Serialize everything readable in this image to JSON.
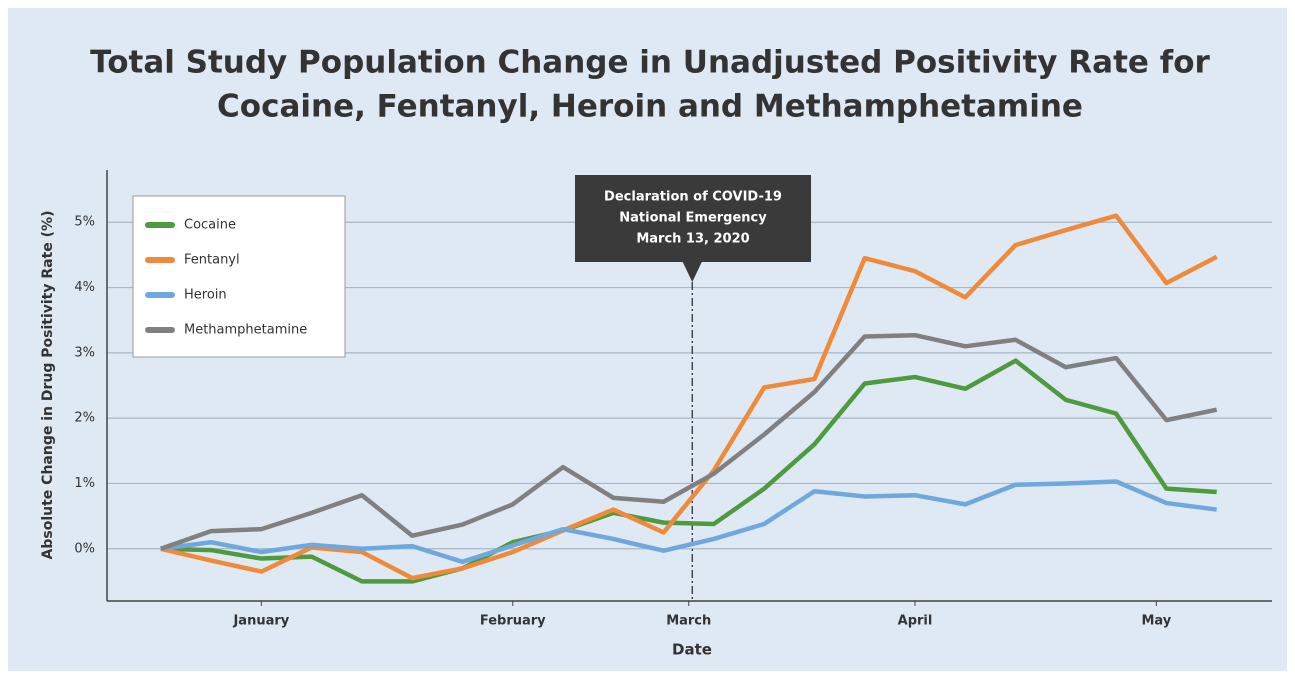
{
  "chart_data": {
    "type": "line",
    "title": [
      "Total Study Population Change in Unadjusted Positivity Rate for",
      "Cocaine, Fentanyl, Heroin and Methamphetamine"
    ],
    "x_label": "Date",
    "y_label": "Absolute Change in Drug Positivity Rate (%)",
    "x": [
      0,
      1,
      2,
      3,
      4,
      5,
      6,
      7,
      8,
      9,
      10,
      11,
      12,
      13,
      14,
      15,
      16,
      17,
      18,
      19,
      20,
      21
    ],
    "xlim": [
      -1.07,
      22.1
    ],
    "xticks": [
      {
        "value": 2,
        "label": "January"
      },
      {
        "value": 7,
        "label": "February"
      },
      {
        "value": 10.5,
        "label": "March"
      },
      {
        "value": 15,
        "label": "April"
      },
      {
        "value": 19.8,
        "label": "May"
      }
    ],
    "ylim": [
      -0.8,
      5.8
    ],
    "yticks": [
      {
        "value": 0,
        "label": "0%"
      },
      {
        "value": 1,
        "label": "1%"
      },
      {
        "value": 2,
        "label": "2%"
      },
      {
        "value": 3,
        "label": "3%"
      },
      {
        "value": 4,
        "label": "4%"
      },
      {
        "value": 5,
        "label": "5%"
      }
    ],
    "grid": true,
    "legend": "upper left",
    "series": [
      {
        "name": "Cocaine",
        "color": "#4e9a3f",
        "values": [
          0,
          -0.02,
          -0.15,
          -0.12,
          -0.5,
          -0.5,
          -0.3,
          0.1,
          0.28,
          0.55,
          0.4,
          0.38,
          0.92,
          1.6,
          2.53,
          2.63,
          2.45,
          2.88,
          2.28,
          2.07,
          0.92,
          0.87
        ]
      },
      {
        "name": "Fentanyl",
        "color": "#ee8a3a",
        "values": [
          0,
          -0.18,
          -0.35,
          0.02,
          -0.05,
          -0.45,
          -0.3,
          -0.05,
          0.28,
          0.6,
          0.25,
          1.2,
          2.47,
          2.6,
          4.45,
          4.25,
          3.85,
          4.65,
          4.88,
          5.1,
          4.07,
          4.47
        ]
      },
      {
        "name": "Heroin",
        "color": "#6fa8dc",
        "values": [
          0,
          0.1,
          -0.05,
          0.06,
          0,
          0.04,
          -0.2,
          0.05,
          0.3,
          0.15,
          -0.03,
          0.15,
          0.38,
          0.88,
          0.8,
          0.82,
          0.68,
          0.98,
          1.0,
          1.03,
          0.7,
          0.6
        ]
      },
      {
        "name": "Methamphetamine",
        "color": "#808080",
        "values": [
          0,
          0.27,
          0.3,
          0.55,
          0.82,
          0.2,
          0.37,
          0.68,
          1.25,
          0.78,
          0.72,
          1.15,
          1.75,
          2.4,
          3.25,
          3.27,
          3.1,
          3.2,
          2.78,
          2.92,
          1.97,
          2.13
        ]
      }
    ],
    "annotation": {
      "x": 10.57,
      "text": [
        "Declaration of COVID-19",
        "National Emergency",
        "March 13, 2020"
      ]
    }
  }
}
